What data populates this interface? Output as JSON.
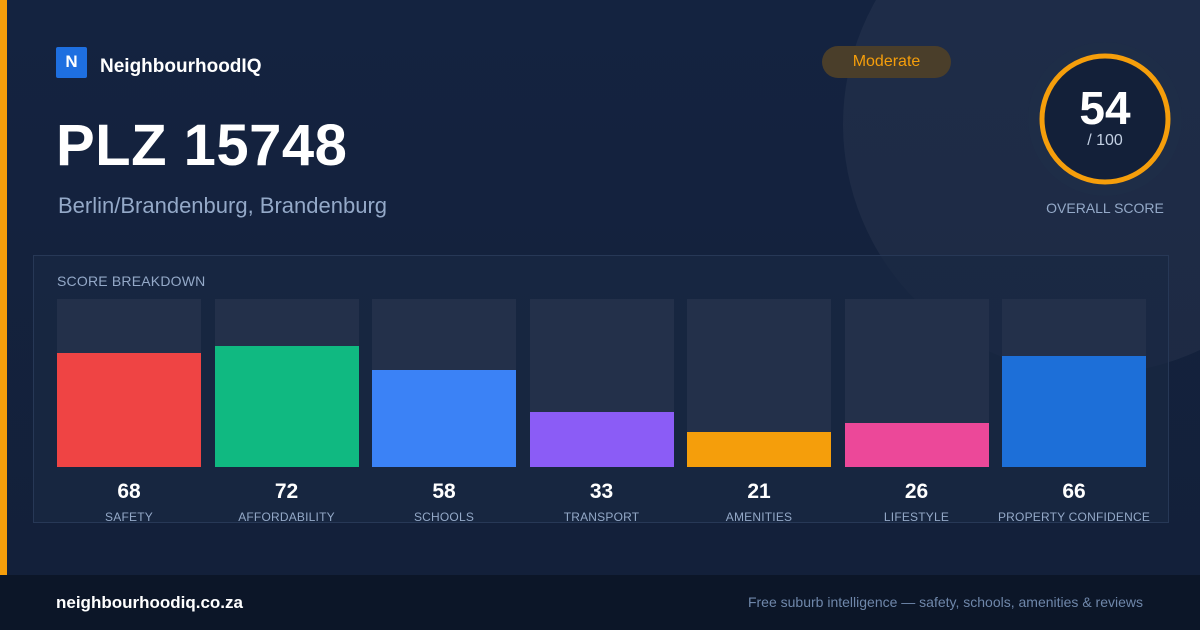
{
  "brand": {
    "logo_letter": "N",
    "name": "NeighbourhoodIQ"
  },
  "header": {
    "title": "PLZ 15748",
    "subtitle": "Berlin/Brandenburg, Brandenburg",
    "badge": "Moderate"
  },
  "overall": {
    "score": "54",
    "max_text": "/ 100",
    "label": "OVERALL SCORE",
    "value": 54,
    "max": 100
  },
  "colors": {
    "accent": "#f59e0b",
    "ring": "#f59e0b"
  },
  "chart_data": {
    "type": "bar",
    "title": "SCORE BREAKDOWN",
    "categories": [
      "SAFETY",
      "AFFORDABILITY",
      "SCHOOLS",
      "TRANSPORT",
      "AMENITIES",
      "LIFESTYLE",
      "PROPERTY CONFIDENCE"
    ],
    "values": [
      68,
      72,
      58,
      33,
      21,
      26,
      66
    ],
    "colors": [
      "#ef4444",
      "#10b981",
      "#3b82f6",
      "#8b5cf6",
      "#f59e0b",
      "#ec4899",
      "#1d6fd8"
    ],
    "ylim": [
      0,
      100
    ]
  },
  "footer": {
    "domain": "neighbourhoodiq.co.za",
    "tagline": "Free suburb intelligence — safety, schools, amenities & reviews"
  }
}
